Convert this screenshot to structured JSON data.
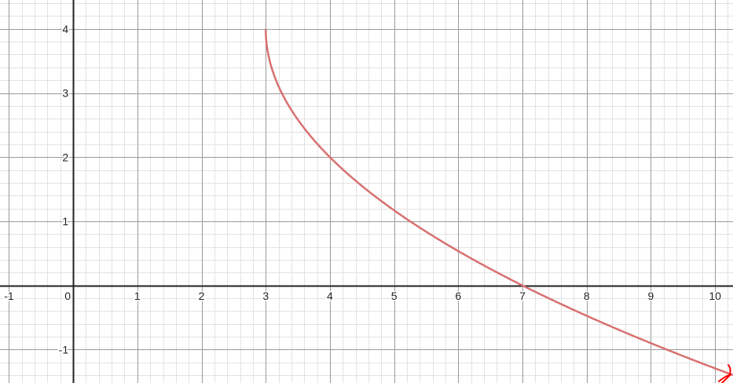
{
  "chart_data": {
    "type": "line",
    "title": "",
    "xlabel": "",
    "ylabel": "",
    "xlim": [
      -1.14,
      10.28
    ],
    "ylim": [
      -1.52,
      4.45
    ],
    "grid": true,
    "x_ticks": [
      "-1",
      "0",
      "1",
      "2",
      "3",
      "4",
      "5",
      "6",
      "7",
      "8",
      "9",
      "10"
    ],
    "y_ticks": [
      "-1",
      "1",
      "2",
      "3",
      "4"
    ],
    "series": [
      {
        "function": "y = 4 - 2*sqrt(x - 3)",
        "domain": [
          3,
          10.28
        ],
        "color": "#d87070",
        "points": [
          [
            3,
            4
          ],
          [
            3.25,
            3
          ],
          [
            4,
            2
          ],
          [
            5,
            1.17
          ],
          [
            6,
            0.54
          ],
          [
            7,
            0
          ],
          [
            8,
            -0.47
          ],
          [
            9,
            -0.9
          ],
          [
            10,
            -1.29
          ]
        ]
      }
    ],
    "annotation": {
      "type": "arrow",
      "color": "#ff0000",
      "near": "bottom-right"
    }
  }
}
